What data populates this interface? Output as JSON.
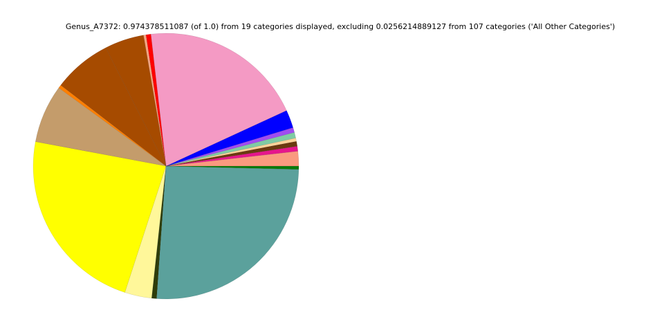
{
  "chart_data": {
    "type": "pie",
    "title": "Genus_A7372: 0.974378511087 (of 1.0) from 19 categories displayed, excluding 0.0256214889127 from 107 categories ('All Other Categories')",
    "values": [
      1.8,
      0.6,
      0.6,
      0.4,
      0.7,
      0.6,
      2.2,
      20.0,
      0.6,
      0.3,
      4.8,
      7.1,
      0.4,
      7.1,
      23.0,
      3.3,
      0.6,
      25.8,
      0.4
    ],
    "colors": [
      "#fa9a7f",
      "#e6168c",
      "#6b3a10",
      "#ffd49a",
      "#7fcba4",
      "#a04cf0",
      "#0000ff",
      "#f49ac4",
      "#ff0000",
      "#f4a582",
      "#a64b00",
      "#a64b00",
      "#ff7f00",
      "#c49c6b",
      "#ffff00",
      "#fff79a",
      "#2e3d0a",
      "#5ba19c",
      "#0a7a0a"
    ]
  }
}
